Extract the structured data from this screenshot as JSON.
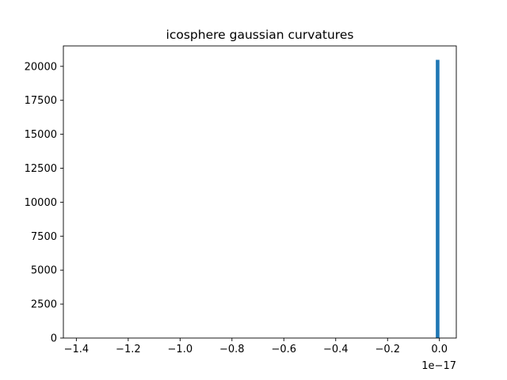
{
  "chart_data": {
    "type": "bar",
    "title": "icosphere gaussian curvatures",
    "xlabel": "",
    "ylabel": "",
    "x_offset_label": "1e−17",
    "xlim": [
      -1.45,
      0.065
    ],
    "ylim": [
      0,
      21504
    ],
    "x_ticks": [
      -1.4,
      -1.2,
      -1.0,
      -0.8,
      -0.6,
      -0.4,
      -0.2,
      0.0
    ],
    "x_tick_labels": [
      "−1.4",
      "−1.2",
      "−1.0",
      "−0.8",
      "−0.6",
      "−0.4",
      "−0.2",
      "0.0"
    ],
    "y_ticks": [
      0,
      2500,
      5000,
      7500,
      10000,
      12500,
      15000,
      17500,
      20000
    ],
    "y_tick_labels": [
      "0",
      "2500",
      "5000",
      "7500",
      "10000",
      "12500",
      "15000",
      "17500",
      "20000"
    ],
    "bars": [
      {
        "x_start": -0.014,
        "x_end": 0.0,
        "value": 20480
      }
    ],
    "grid": false,
    "legend": "none",
    "bar_color": "#1f77b4"
  }
}
